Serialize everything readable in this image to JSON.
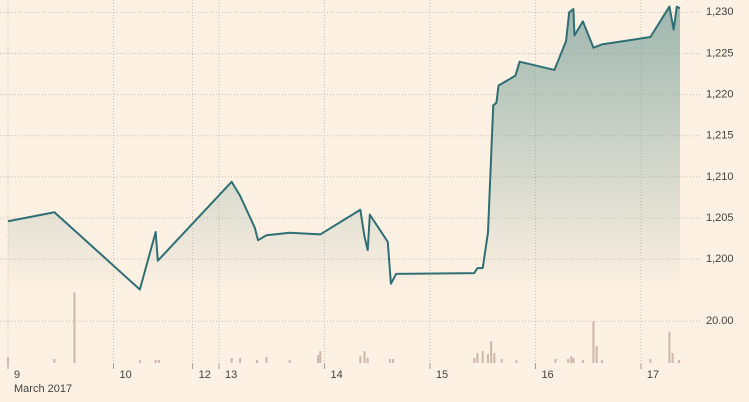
{
  "chart_data": [
    {
      "type": "area",
      "x": [
        0,
        0.44,
        1.25,
        1.4,
        1.42,
        2.12,
        2.2,
        2.34,
        2.37,
        2.45,
        2.67,
        2.96,
        3.34,
        3.38,
        3.41,
        3.43,
        3.6,
        3.63,
        3.68,
        4.42,
        4.45,
        4.5,
        4.55,
        4.6,
        4.63,
        4.65,
        4.81,
        4.85,
        5.18,
        5.29,
        5.32,
        5.36,
        5.37,
        5.45,
        5.55,
        5.63,
        6.09,
        6.27,
        6.31,
        6.34,
        6.37
      ],
      "series": [
        {
          "color": "#2f6f73",
          "fill_color": "#7fa39d",
          "values": [
            1204.6,
            1205.7,
            1196.3,
            1203.3,
            1199.8,
            1209.4,
            1207.7,
            1203.8,
            1202.3,
            1202.9,
            1203.2,
            1203.0,
            1206.0,
            1202.7,
            1201.1,
            1205.4,
            1202.1,
            1197.0,
            1198.2,
            1198.3,
            1198.9,
            1198.9,
            1203.2,
            1218.7,
            1219.0,
            1221.1,
            1222.3,
            1224.0,
            1223.0,
            1226.5,
            1230.0,
            1230.4,
            1227.2,
            1228.9,
            1225.7,
            1226.1,
            1227.0,
            1230.7,
            1227.9,
            1230.7,
            1230.5
          ]
        }
      ],
      "xlim": [
        0,
        6.56
      ],
      "ylim": [
        1196,
        1231.5
      ],
      "yticks": [
        {
          "value": 1230,
          "label": "1,230"
        },
        {
          "value": 1225,
          "label": "1,225"
        },
        {
          "value": 1220,
          "label": "1,220"
        },
        {
          "value": 1215,
          "label": "1,215"
        },
        {
          "value": 1210,
          "label": "1,210"
        },
        {
          "value": 1205,
          "label": "1,205"
        },
        {
          "value": 1200,
          "label": "1,200"
        }
      ],
      "grid": true
    },
    {
      "type": "bar",
      "x": [
        0,
        0.44,
        0.63,
        1.25,
        1.4,
        1.43,
        2.12,
        2.2,
        2.36,
        2.45,
        2.67,
        2.94,
        2.96,
        3.34,
        3.38,
        3.41,
        3.62,
        3.65,
        4.42,
        4.45,
        4.5,
        4.55,
        4.58,
        4.61,
        4.68,
        4.82,
        5.19,
        5.31,
        5.34,
        5.36,
        5.45,
        5.55,
        5.58,
        5.63,
        6.09,
        6.27,
        6.3,
        6.36
      ],
      "values": [
        2.4,
        1.9,
        33.8,
        1.4,
        1.4,
        1.4,
        2.4,
        2.4,
        1.4,
        2.9,
        1.4,
        3.8,
        5.7,
        3.3,
        5.7,
        2.4,
        1.9,
        1.9,
        2.4,
        4.8,
        5.7,
        4.3,
        10.5,
        4.8,
        1.9,
        1.4,
        1.9,
        1.9,
        3.3,
        2.4,
        1.4,
        20,
        8.1,
        1.4,
        1.9,
        14.8,
        4.8,
        1.4
      ],
      "color": "#cdb8a8",
      "xlim": [
        0,
        6.56
      ],
      "ylim": [
        0,
        34
      ],
      "yticks": [
        {
          "value": 20,
          "label": "20.00"
        }
      ],
      "xticks": [
        {
          "value": 0,
          "label": "9"
        },
        {
          "value": 1,
          "label": "10"
        },
        {
          "value": 1.75,
          "label": "12"
        },
        {
          "value": 2,
          "label": "13"
        },
        {
          "value": 3,
          "label": "14"
        },
        {
          "value": 4,
          "label": "15"
        },
        {
          "value": 5,
          "label": "16"
        },
        {
          "value": 6,
          "label": "17"
        }
      ],
      "xlabel": "March 2017",
      "grid": true
    }
  ]
}
